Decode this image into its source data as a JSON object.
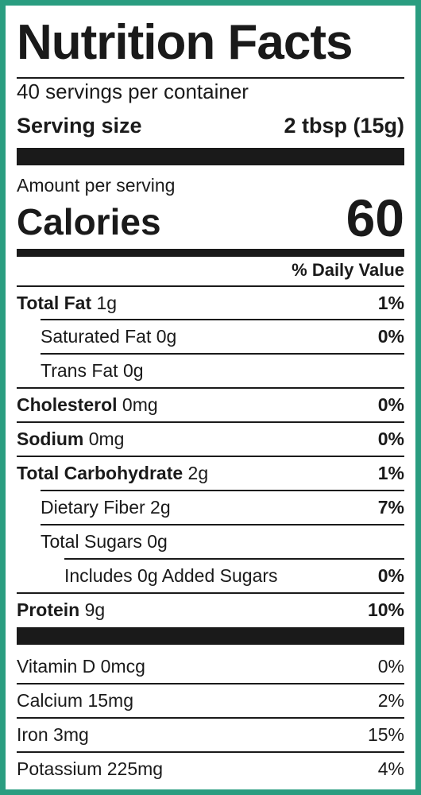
{
  "colors": {
    "border": "#2a9d80",
    "ink": "#1a1a1a",
    "background": "#ffffff"
  },
  "title": "Nutrition Facts",
  "servings_per_container": "40 servings per container",
  "serving_size": {
    "label": "Serving size",
    "value": "2 tbsp (15g)"
  },
  "amount_per_serving": "Amount per serving",
  "calories": {
    "label": "Calories",
    "value": "60"
  },
  "daily_value_header": "% Daily Value",
  "nutrients": [
    {
      "name": "Total Fat",
      "amount": " 1g",
      "dv": "1%",
      "bold": true
    },
    {
      "name": "Saturated Fat",
      "amount": " 0g",
      "dv": "0%",
      "bold": false
    },
    {
      "name": "Trans Fat",
      "amount": " 0g",
      "dv": "",
      "bold": false
    },
    {
      "name": "Cholesterol",
      "amount": " 0mg",
      "dv": "0%",
      "bold": true
    },
    {
      "name": "Sodium",
      "amount": " 0mg",
      "dv": "0%",
      "bold": true
    },
    {
      "name": "Total Carbohydrate",
      "amount": " 2g",
      "dv": "1%",
      "bold": true
    },
    {
      "name": "Dietary Fiber",
      "amount": " 2g",
      "dv": "7%",
      "bold": false
    },
    {
      "name": "Total Sugars",
      "amount": " 0g",
      "dv": "",
      "bold": false
    },
    {
      "name": "Includes 0g Added Sugars",
      "amount": "",
      "dv": "0%",
      "bold": false
    },
    {
      "name": "Protein",
      "amount": " 9g",
      "dv": "10%",
      "bold": true
    }
  ],
  "vitamins": [
    {
      "name": "Vitamin D 0mcg",
      "dv": "0%"
    },
    {
      "name": "Calcium 15mg",
      "dv": "2%"
    },
    {
      "name": "Iron 3mg",
      "dv": "15%"
    },
    {
      "name": "Potassium 225mg",
      "dv": "4%"
    }
  ]
}
